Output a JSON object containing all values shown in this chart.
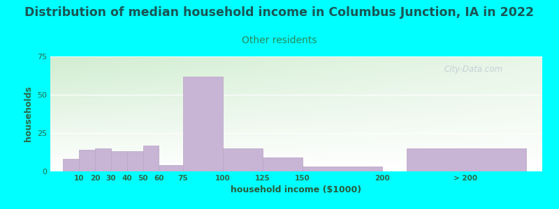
{
  "title": "Distribution of median household income in Columbus Junction, IA in 2022",
  "subtitle": "Other residents",
  "xlabel": "household income ($1000)",
  "ylabel": "households",
  "background_color": "#00FFFF",
  "bar_color": "#c8b4d4",
  "bar_edge_color": "#b8a4c4",
  "title_fontsize": 12.5,
  "title_color": "#1a5555",
  "subtitle_fontsize": 10,
  "subtitle_color": "#2a8a5a",
  "ylabel_color": "#2a6a4a",
  "xlabel_color": "#2a5a3a",
  "tick_color": "#2a6a4a",
  "ylim": [
    0,
    75
  ],
  "yticks": [
    0,
    25,
    50,
    75
  ],
  "watermark": "City-Data.com",
  "bin_lefts": [
    0,
    10,
    20,
    30,
    40,
    50,
    60,
    75,
    100,
    125,
    150,
    215
  ],
  "bin_rights": [
    10,
    20,
    30,
    40,
    50,
    60,
    75,
    100,
    125,
    150,
    200,
    290
  ],
  "values": [
    8,
    14,
    15,
    13,
    13,
    17,
    4,
    62,
    15,
    9,
    3,
    15
  ],
  "tick_positions": [
    10,
    20,
    30,
    40,
    50,
    60,
    75,
    100,
    125,
    150,
    200,
    252
  ],
  "tick_labels": [
    "10",
    "20",
    "30",
    "40",
    "50",
    "60",
    "75",
    "100",
    "125",
    "150",
    "200",
    "> 200"
  ]
}
